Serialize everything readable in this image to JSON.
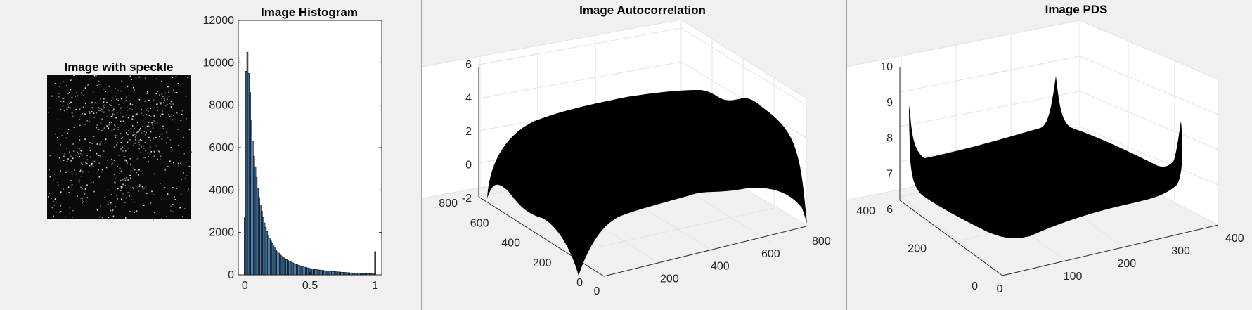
{
  "figure": {
    "background": "#f0f0f0",
    "separator_color": "#a0a0a0"
  },
  "speckle_panel": {
    "title": "Image with speckle",
    "image": "grayscale-speckle-micrograph"
  },
  "histogram_panel": {
    "title": "Image Histogram",
    "bar_color": "#4f7faf"
  },
  "autocorr_panel": {
    "title": "Image Autocorrelation",
    "surface_color": "#000000"
  },
  "pds_panel": {
    "title": "Image PDS",
    "surface_color": "#000000"
  },
  "chart_data": [
    {
      "type": "bar",
      "title": "Image Histogram",
      "xlabel": "",
      "ylabel": "",
      "xlim": [
        -0.05,
        1.05
      ],
      "ylim": [
        0,
        12000
      ],
      "grid": false,
      "x_ticks": [
        "0",
        "0.5",
        "1"
      ],
      "y_ticks": [
        "0",
        "2000",
        "4000",
        "6000",
        "8000",
        "10000",
        "12000"
      ],
      "x": [
        0.0,
        0.01,
        0.02,
        0.03,
        0.04,
        0.05,
        0.06,
        0.07,
        0.08,
        0.09,
        0.1,
        0.11,
        0.12,
        0.13,
        0.14,
        0.15,
        0.16,
        0.17,
        0.18,
        0.19,
        0.2,
        0.21,
        0.22,
        0.23,
        0.24,
        0.25,
        0.26,
        0.27,
        0.28,
        0.29,
        0.3,
        0.31,
        0.32,
        0.33,
        0.34,
        0.35,
        0.36,
        0.37,
        0.38,
        0.39,
        0.4,
        0.41,
        0.42,
        0.43,
        0.44,
        0.45,
        0.46,
        0.47,
        0.48,
        0.49,
        0.5,
        0.51,
        0.52,
        0.53,
        0.54,
        0.55,
        0.56,
        0.57,
        0.58,
        0.59,
        0.6,
        0.61,
        0.62,
        0.63,
        0.64,
        0.65,
        0.66,
        0.67,
        0.68,
        0.69,
        0.7,
        0.71,
        0.72,
        0.73,
        0.74,
        0.75,
        0.76,
        0.77,
        0.78,
        0.79,
        0.8,
        0.81,
        0.82,
        0.83,
        0.84,
        0.85,
        0.86,
        0.87,
        0.88,
        0.89,
        0.9,
        0.91,
        0.92,
        0.93,
        0.94,
        0.95,
        0.96,
        0.97,
        0.98,
        0.99,
        1.0
      ],
      "values": [
        2700,
        9600,
        10500,
        9500,
        8600,
        7300,
        6300,
        5600,
        5100,
        4600,
        4100,
        3650,
        3300,
        3000,
        2700,
        2450,
        2250,
        2050,
        1880,
        1740,
        1600,
        1480,
        1370,
        1270,
        1180,
        1100,
        1030,
        960,
        900,
        850,
        800,
        760,
        720,
        680,
        650,
        620,
        590,
        560,
        530,
        500,
        480,
        460,
        440,
        420,
        400,
        380,
        360,
        345,
        330,
        315,
        300,
        290,
        280,
        270,
        260,
        250,
        240,
        232,
        224,
        216,
        208,
        200,
        193,
        186,
        180,
        174,
        168,
        162,
        156,
        150,
        145,
        140,
        135,
        130,
        125,
        120,
        116,
        112,
        108,
        104,
        100,
        96,
        93,
        90,
        87,
        84,
        81,
        78,
        75,
        72,
        69,
        66,
        63,
        60,
        57,
        54,
        51,
        48,
        45,
        42,
        1100
      ]
    },
    {
      "type": "surface",
      "title": "Image Autocorrelation",
      "x_ticks": [
        "0",
        "200",
        "400",
        "600",
        "800"
      ],
      "y_ticks": [
        "0",
        "200",
        "400",
        "600",
        "800"
      ],
      "z_ticks": [
        "-2",
        "0",
        "2",
        "4",
        "6"
      ],
      "xlim": [
        0,
        800
      ],
      "ylim": [
        0,
        800
      ],
      "zlim": [
        -2,
        6
      ],
      "grid": true
    },
    {
      "type": "surface",
      "title": "Image PDS",
      "x_ticks": [
        "0",
        "100",
        "200",
        "300",
        "400"
      ],
      "y_ticks": [
        "0",
        "200",
        "400"
      ],
      "z_ticks": [
        "6",
        "7",
        "8",
        "9",
        "10"
      ],
      "xlim": [
        0,
        400
      ],
      "ylim": [
        0,
        400
      ],
      "zlim": [
        6,
        10
      ],
      "grid": true
    }
  ]
}
